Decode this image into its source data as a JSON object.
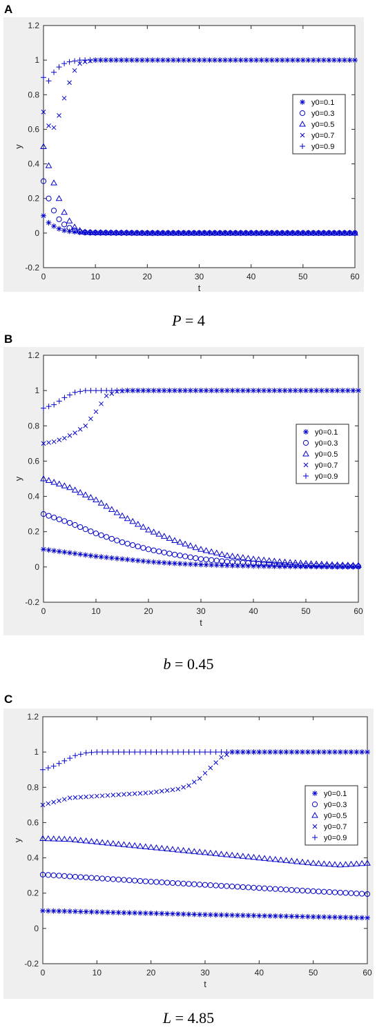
{
  "panels": [
    {
      "letter": "A",
      "caption": {
        "var": "P",
        "eq": " = 4"
      },
      "chart_data": {
        "type": "scatter",
        "title": "",
        "xlabel": "t",
        "ylabel": "y",
        "xlim": [
          0,
          60
        ],
        "ylim": [
          -0.2,
          1.2
        ],
        "xticks": [
          0,
          10,
          20,
          30,
          40,
          50,
          60
        ],
        "yticks": [
          -0.2,
          0,
          0.2,
          0.4,
          0.6,
          0.8,
          1,
          1.2
        ],
        "grid": false,
        "legend": "right",
        "series": [
          {
            "name": "y0=0.1",
            "marker": "asterisk",
            "x": [
              0,
              1,
              2,
              3,
              4,
              5,
              6,
              7,
              8,
              10,
              20,
              30,
              40,
              50,
              60
            ],
            "y": [
              0.1,
              0.06,
              0.04,
              0.025,
              0.015,
              0.01,
              0.007,
              0.004,
              0.002,
              0.001,
              0,
              0,
              0,
              0,
              0
            ]
          },
          {
            "name": "y0=0.3",
            "marker": "circle",
            "x": [
              0,
              1,
              2,
              3,
              4,
              5,
              6,
              7,
              8,
              10,
              20,
              30,
              40,
              50,
              60
            ],
            "y": [
              0.3,
              0.2,
              0.13,
              0.08,
              0.05,
              0.03,
              0.015,
              0.008,
              0.004,
              0.002,
              0,
              0,
              0,
              0,
              0
            ]
          },
          {
            "name": "y0=0.5",
            "marker": "triangle",
            "x": [
              0,
              1,
              2,
              3,
              4,
              5,
              6,
              7,
              8,
              10,
              20,
              30,
              40,
              50,
              60
            ],
            "y": [
              0.5,
              0.39,
              0.29,
              0.2,
              0.12,
              0.07,
              0.035,
              0.015,
              0.006,
              0.003,
              0,
              0,
              0,
              0,
              0
            ]
          },
          {
            "name": "y0=0.7",
            "marker": "x",
            "x": [
              0,
              1,
              2,
              3,
              4,
              5,
              6,
              7,
              8,
              10,
              20,
              30,
              40,
              50,
              60
            ],
            "y": [
              0.7,
              0.62,
              0.61,
              0.68,
              0.78,
              0.87,
              0.94,
              0.98,
              0.99,
              1,
              1,
              1,
              1,
              1,
              1
            ]
          },
          {
            "name": "y0=0.9",
            "marker": "plus",
            "x": [
              0,
              1,
              2,
              3,
              4,
              5,
              6,
              7,
              8,
              10,
              20,
              30,
              40,
              50,
              60
            ],
            "y": [
              0.9,
              0.88,
              0.93,
              0.96,
              0.98,
              0.99,
              0.995,
              1,
              1,
              1,
              1,
              1,
              1,
              1,
              1
            ]
          }
        ],
        "marker_color": "#0000cc"
      }
    },
    {
      "letter": "B",
      "caption": {
        "var": "b",
        "eq": " = 0.45"
      },
      "chart_data": {
        "type": "scatter",
        "title": "",
        "xlabel": "t",
        "ylabel": "y",
        "xlim": [
          0,
          60
        ],
        "ylim": [
          -0.2,
          1.2
        ],
        "xticks": [
          0,
          10,
          20,
          30,
          40,
          50,
          60
        ],
        "yticks": [
          -0.2,
          0,
          0.2,
          0.4,
          0.6,
          0.8,
          1,
          1.2
        ],
        "grid": false,
        "legend": "right",
        "series": [
          {
            "name": "y0=0.1",
            "marker": "asterisk",
            "x": [
              0,
              5,
              10,
              15,
              20,
              25,
              30,
              35,
              40,
              45,
              50,
              55,
              60
            ],
            "y": [
              0.1,
              0.08,
              0.06,
              0.045,
              0.03,
              0.02,
              0.013,
              0.008,
              0.005,
              0.003,
              0.002,
              0.001,
              0.001
            ]
          },
          {
            "name": "y0=0.3",
            "marker": "circle",
            "x": [
              0,
              5,
              10,
              15,
              20,
              25,
              30,
              35,
              40,
              45,
              50,
              55,
              60
            ],
            "y": [
              0.3,
              0.25,
              0.19,
              0.14,
              0.1,
              0.07,
              0.045,
              0.03,
              0.02,
              0.012,
              0.008,
              0.005,
              0.003
            ]
          },
          {
            "name": "y0=0.5",
            "marker": "triangle",
            "x": [
              0,
              5,
              10,
              15,
              20,
              25,
              30,
              35,
              40,
              45,
              50,
              55,
              60
            ],
            "y": [
              0.5,
              0.45,
              0.38,
              0.29,
              0.21,
              0.15,
              0.1,
              0.065,
              0.045,
              0.03,
              0.02,
              0.013,
              0.009
            ]
          },
          {
            "name": "y0=0.7",
            "marker": "x",
            "x": [
              0,
              2,
              4,
              6,
              8,
              10,
              12,
              14,
              16,
              20,
              30,
              40,
              50,
              60
            ],
            "y": [
              0.7,
              0.71,
              0.73,
              0.76,
              0.8,
              0.88,
              0.97,
              0.995,
              1,
              1,
              1,
              1,
              1,
              1
            ]
          },
          {
            "name": "y0=0.9",
            "marker": "plus",
            "x": [
              0,
              2,
              4,
              6,
              8,
              10,
              15,
              20,
              30,
              40,
              50,
              60
            ],
            "y": [
              0.9,
              0.92,
              0.96,
              0.99,
              1,
              1,
              1,
              1,
              1,
              1,
              1,
              1
            ]
          }
        ],
        "marker_color": "#0000cc"
      }
    },
    {
      "letter": "C",
      "caption": {
        "var": "L",
        "eq": " = 4.85"
      },
      "chart_data": {
        "type": "scatter",
        "title": "",
        "xlabel": "t",
        "ylabel": "y",
        "xlim": [
          0,
          60
        ],
        "ylim": [
          -0.2,
          1.2
        ],
        "xticks": [
          0,
          10,
          20,
          30,
          40,
          50,
          60
        ],
        "yticks": [
          -0.2,
          0,
          0.2,
          0.4,
          0.6,
          0.8,
          1,
          1.2
        ],
        "grid": false,
        "legend": "right",
        "series": [
          {
            "name": "y0=0.1",
            "marker": "asterisk",
            "x": [
              0,
              5,
              10,
              15,
              20,
              25,
              30,
              35,
              40,
              45,
              50,
              55,
              60
            ],
            "y": [
              0.1,
              0.097,
              0.093,
              0.089,
              0.086,
              0.082,
              0.078,
              0.075,
              0.072,
              0.069,
              0.066,
              0.063,
              0.06
            ]
          },
          {
            "name": "y0=0.3",
            "marker": "circle",
            "x": [
              0,
              5,
              10,
              15,
              20,
              25,
              30,
              35,
              40,
              45,
              50,
              55,
              60
            ],
            "y": [
              0.305,
              0.295,
              0.285,
              0.275,
              0.265,
              0.256,
              0.247,
              0.238,
              0.229,
              0.22,
              0.211,
              0.203,
              0.195
            ]
          },
          {
            "name": "y0=0.5",
            "marker": "triangle",
            "x": [
              0,
              5,
              10,
              15,
              20,
              25,
              30,
              35,
              40,
              45,
              50,
              55,
              60
            ],
            "y": [
              0.51,
              0.505,
              0.49,
              0.475,
              0.46,
              0.445,
              0.43,
              0.415,
              0.4,
              0.385,
              0.37,
              0.36,
              0.37
            ]
          },
          {
            "name": "y0=0.7",
            "marker": "x",
            "x": [
              0,
              5,
              10,
              15,
              20,
              25,
              27,
              29,
              31,
              33,
              35,
              40,
              50,
              60
            ],
            "y": [
              0.7,
              0.74,
              0.75,
              0.76,
              0.77,
              0.79,
              0.81,
              0.85,
              0.91,
              0.97,
              1,
              1,
              1,
              1
            ]
          },
          {
            "name": "y0=0.9",
            "marker": "plus",
            "x": [
              0,
              2,
              4,
              6,
              8,
              10,
              15,
              20,
              30,
              40,
              50,
              60
            ],
            "y": [
              0.9,
              0.92,
              0.95,
              0.98,
              0.995,
              1,
              1,
              1,
              1,
              1,
              1,
              1
            ]
          }
        ],
        "marker_color": "#0000cc"
      }
    }
  ]
}
